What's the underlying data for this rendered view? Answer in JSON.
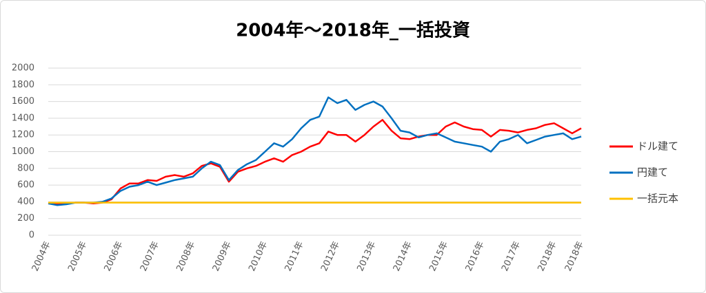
{
  "chart_data": {
    "type": "line",
    "title": "2004年～2018年_一括投資",
    "categories": [
      "2004年",
      null,
      null,
      null,
      "2005年",
      null,
      null,
      null,
      "2006年",
      null,
      null,
      null,
      "2007年",
      null,
      null,
      null,
      "2008年",
      null,
      null,
      null,
      "2009年",
      null,
      null,
      null,
      "2010年",
      null,
      null,
      null,
      "2011年",
      null,
      null,
      null,
      "2012年",
      null,
      null,
      null,
      "2013年",
      null,
      null,
      null,
      "2014年",
      null,
      null,
      null,
      "2015年",
      null,
      null,
      null,
      "2016年",
      null,
      null,
      null,
      "2017年",
      null,
      null,
      null,
      "2018年",
      null,
      null,
      "2018年"
    ],
    "series": [
      {
        "name": "ドル建て",
        "color": "#ff0000",
        "values": [
          380,
          370,
          380,
          390,
          390,
          380,
          390,
          430,
          560,
          620,
          620,
          660,
          650,
          700,
          720,
          700,
          740,
          830,
          860,
          820,
          640,
          760,
          800,
          830,
          880,
          920,
          880,
          960,
          1000,
          1060,
          1100,
          1240,
          1200,
          1200,
          1120,
          1200,
          1300,
          1380,
          1250,
          1160,
          1150,
          1180,
          1200,
          1200,
          1300,
          1350,
          1300,
          1270,
          1260,
          1180,
          1260,
          1250,
          1230,
          1260,
          1280,
          1320,
          1340,
          1280,
          1220,
          1280
        ]
      },
      {
        "name": "円建て",
        "color": "#0070c0",
        "values": [
          380,
          360,
          370,
          390,
          390,
          390,
          400,
          440,
          530,
          580,
          600,
          640,
          600,
          630,
          660,
          680,
          700,
          800,
          880,
          840,
          660,
          780,
          850,
          900,
          1000,
          1100,
          1060,
          1150,
          1280,
          1380,
          1420,
          1650,
          1580,
          1620,
          1500,
          1560,
          1600,
          1540,
          1400,
          1250,
          1230,
          1170,
          1200,
          1220,
          1170,
          1120,
          1100,
          1080,
          1060,
          1000,
          1120,
          1150,
          1200,
          1100,
          1140,
          1180,
          1200,
          1220,
          1150,
          1180
        ]
      },
      {
        "name": "一括元本",
        "color": "#ffc000",
        "values": [
          390,
          390,
          390,
          390,
          390,
          390,
          390,
          390,
          390,
          390,
          390,
          390,
          390,
          390,
          390,
          390,
          390,
          390,
          390,
          390,
          390,
          390,
          390,
          390,
          390,
          390,
          390,
          390,
          390,
          390,
          390,
          390,
          390,
          390,
          390,
          390,
          390,
          390,
          390,
          390,
          390,
          390,
          390,
          390,
          390,
          390,
          390,
          390,
          390,
          390,
          390,
          390,
          390,
          390,
          390,
          390,
          390,
          390,
          390,
          390
        ]
      }
    ],
    "ylim": [
      0,
      2000
    ],
    "yticks": [
      0,
      200,
      400,
      600,
      800,
      1000,
      1200,
      1400,
      1600,
      1800,
      2000
    ],
    "grid": true,
    "legend": "right"
  }
}
